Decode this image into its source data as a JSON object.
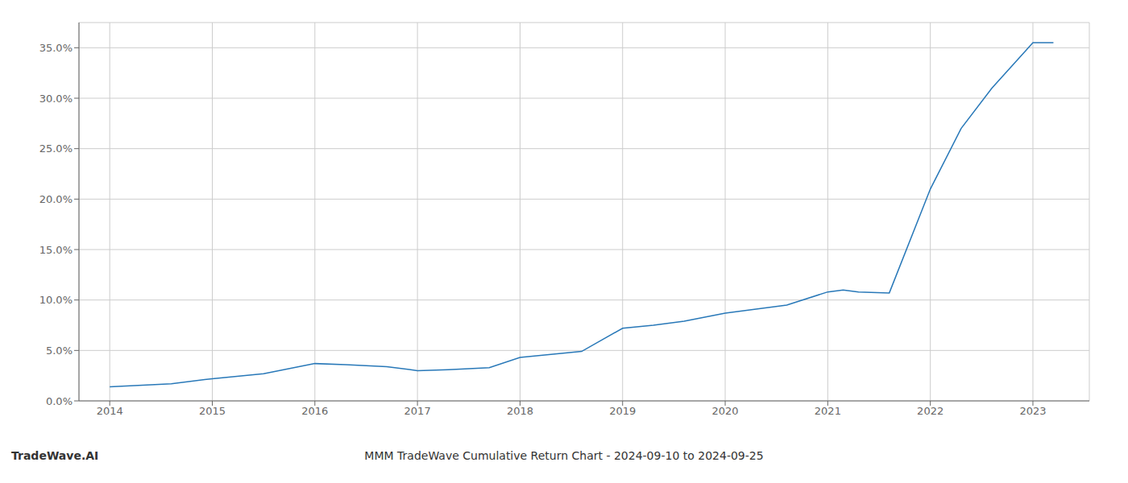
{
  "chart_data": {
    "type": "line",
    "title": "MMM TradeWave Cumulative Return Chart - 2024-09-10 to 2024-09-25",
    "annotations": [
      "TradeWave.AI"
    ],
    "x": [
      2014.0,
      2014.6,
      2015.0,
      2015.5,
      2016.0,
      2016.3,
      2016.7,
      2017.0,
      2017.3,
      2017.7,
      2018.0,
      2018.3,
      2018.6,
      2019.0,
      2019.3,
      2019.6,
      2020.0,
      2020.3,
      2020.6,
      2021.0,
      2021.15,
      2021.3,
      2021.6,
      2022.0,
      2022.3,
      2022.6,
      2023.0,
      2023.2
    ],
    "values": [
      1.4,
      1.7,
      2.2,
      2.7,
      3.7,
      3.6,
      3.4,
      3.0,
      3.1,
      3.3,
      4.3,
      4.6,
      4.9,
      7.2,
      7.5,
      7.9,
      8.7,
      9.1,
      9.5,
      10.8,
      11.0,
      10.8,
      10.7,
      21.0,
      27.0,
      31.0,
      35.5,
      35.5
    ],
    "color": "#2878b8",
    "xlim": [
      2013.7,
      2023.55
    ],
    "ylim": [
      0.0,
      37.5
    ],
    "xticks": [
      2014,
      2015,
      2016,
      2017,
      2018,
      2019,
      2020,
      2021,
      2022,
      2023
    ],
    "yticks": [
      {
        "value": 0,
        "label": "0.0%"
      },
      {
        "value": 5,
        "label": "5.0%"
      },
      {
        "value": 10,
        "label": "10.0%"
      },
      {
        "value": 15,
        "label": "15.0%"
      },
      {
        "value": 20,
        "label": "20.0%"
      },
      {
        "value": 25,
        "label": "25.0%"
      },
      {
        "value": 30,
        "label": "30.0%"
      },
      {
        "value": 35,
        "label": "35.0%"
      }
    ],
    "grid": true
  }
}
